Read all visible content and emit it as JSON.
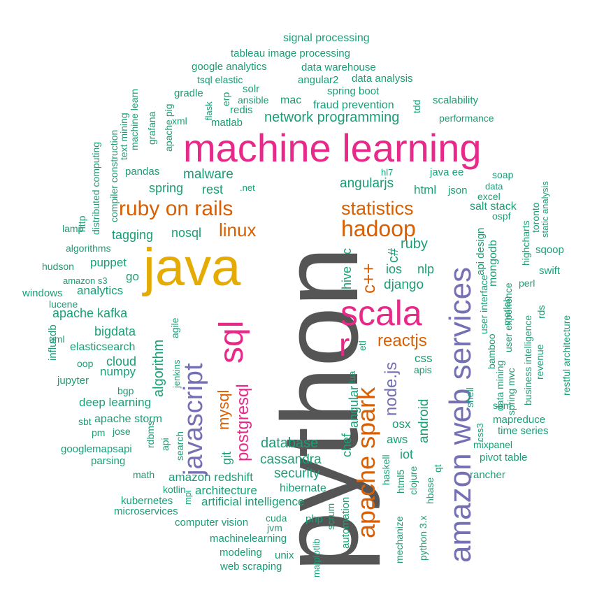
{
  "colors": {
    "teal": "#1b9e77",
    "orange": "#d95f02",
    "purple": "#7570b3",
    "pink": "#e7298a",
    "gold": "#e6ab02",
    "gray": "#555555"
  },
  "words": [
    {
      "text": "python",
      "color": "gray",
      "vertical": true
    },
    {
      "text": "java",
      "color": "gold",
      "vertical": false
    },
    {
      "text": "machine learning",
      "color": "pink",
      "vertical": false
    },
    {
      "text": "amazon web services",
      "color": "purple",
      "vertical": true
    },
    {
      "text": "scala",
      "color": "pink",
      "vertical": false
    },
    {
      "text": "javascript",
      "color": "purple",
      "vertical": true
    },
    {
      "text": "sql",
      "color": "pink",
      "vertical": true
    },
    {
      "text": "apache spark",
      "color": "orange",
      "vertical": true
    },
    {
      "text": "r",
      "color": "pink",
      "vertical": false
    },
    {
      "text": "ruby on rails",
      "color": "orange",
      "vertical": false
    },
    {
      "text": "hadoop",
      "color": "orange",
      "vertical": false
    },
    {
      "text": "statistics",
      "color": "orange",
      "vertical": false
    },
    {
      "text": "linux",
      "color": "orange",
      "vertical": false
    },
    {
      "text": "reactjs",
      "color": "orange",
      "vertical": false
    },
    {
      "text": "c++",
      "color": "orange",
      "vertical": true
    },
    {
      "text": "node.js",
      "color": "purple",
      "vertical": true
    },
    {
      "text": "postgresql",
      "color": "pink",
      "vertical": true
    },
    {
      "text": "mysql",
      "color": "orange",
      "vertical": true
    },
    {
      "text": "network programming",
      "color": "teal",
      "vertical": false
    },
    {
      "text": "malware",
      "color": "teal",
      "vertical": false
    },
    {
      "text": "spring",
      "color": "teal",
      "vertical": false
    },
    {
      "text": "rest",
      "color": "teal",
      "vertical": false
    },
    {
      "text": "tagging",
      "color": "teal",
      "vertical": false
    },
    {
      "text": "nosql",
      "color": "teal",
      "vertical": false
    },
    {
      "text": "angularjs",
      "color": "teal",
      "vertical": false
    },
    {
      "text": "html",
      "color": "teal",
      "vertical": false
    },
    {
      "text": "ruby",
      "color": "teal",
      "vertical": false
    },
    {
      "text": "ios",
      "color": "teal",
      "vertical": false
    },
    {
      "text": "nlp",
      "color": "teal",
      "vertical": false
    },
    {
      "text": "django",
      "color": "teal",
      "vertical": false
    },
    {
      "text": "hive",
      "color": "teal",
      "vertical": true
    },
    {
      "text": "c",
      "color": "teal",
      "vertical": true
    },
    {
      "text": "c#",
      "color": "teal",
      "vertical": true
    },
    {
      "text": "puppet",
      "color": "teal",
      "vertical": false
    },
    {
      "text": "go",
      "color": "teal",
      "vertical": false
    },
    {
      "text": "analytics",
      "color": "teal",
      "vertical": false
    },
    {
      "text": "apache kafka",
      "color": "teal",
      "vertical": false
    },
    {
      "text": "bigdata",
      "color": "teal",
      "vertical": false
    },
    {
      "text": "algorithm",
      "color": "teal",
      "vertical": true
    },
    {
      "text": "elasticsearch",
      "color": "teal",
      "vertical": false
    },
    {
      "text": "cloud",
      "color": "teal",
      "vertical": false
    },
    {
      "text": "numpy",
      "color": "teal",
      "vertical": false
    },
    {
      "text": "deep learning",
      "color": "teal",
      "vertical": false
    },
    {
      "text": "apache storm",
      "color": "teal",
      "vertical": false
    },
    {
      "text": "database",
      "color": "teal",
      "vertical": false
    },
    {
      "text": "cassandra",
      "color": "teal",
      "vertical": false
    },
    {
      "text": "security",
      "color": "teal",
      "vertical": false
    },
    {
      "text": "hibernate",
      "color": "teal",
      "vertical": false
    },
    {
      "text": "amazon redshift",
      "color": "teal",
      "vertical": false
    },
    {
      "text": "architecture",
      "color": "teal",
      "vertical": false
    },
    {
      "text": "artificial intelligence",
      "color": "teal",
      "vertical": false
    },
    {
      "text": "git",
      "color": "teal",
      "vertical": true
    },
    {
      "text": "chef",
      "color": "teal",
      "vertical": true
    },
    {
      "text": "angular",
      "color": "teal",
      "vertical": true
    },
    {
      "text": "lua",
      "color": "teal",
      "vertical": true
    },
    {
      "text": "etl",
      "color": "teal",
      "vertical": true
    },
    {
      "text": "osx",
      "color": "teal",
      "vertical": false
    },
    {
      "text": "aws",
      "color": "teal",
      "vertical": false
    },
    {
      "text": "iot",
      "color": "teal",
      "vertical": false
    },
    {
      "text": "android",
      "color": "teal",
      "vertical": true
    },
    {
      "text": "css",
      "color": "teal",
      "vertical": false
    },
    {
      "text": "apis",
      "color": "teal",
      "vertical": false
    },
    {
      "text": "pandas",
      "color": "teal",
      "vertical": false
    },
    {
      "text": ".net",
      "color": "teal",
      "vertical": false
    },
    {
      "text": "hl7",
      "color": "teal",
      "vertical": false
    },
    {
      "text": "java ee",
      "color": "teal",
      "vertical": false
    },
    {
      "text": "soap",
      "color": "teal",
      "vertical": false
    },
    {
      "text": "json",
      "color": "teal",
      "vertical": false
    },
    {
      "text": "data",
      "color": "teal",
      "vertical": false
    },
    {
      "text": "excel",
      "color": "teal",
      "vertical": false
    },
    {
      "text": "salt stack",
      "color": "teal",
      "vertical": false
    },
    {
      "text": "ospf",
      "color": "teal",
      "vertical": false
    },
    {
      "text": "mongodb",
      "color": "teal",
      "vertical": true
    },
    {
      "text": "api design",
      "color": "teal",
      "vertical": true
    },
    {
      "text": "user interface",
      "color": "teal",
      "vertical": true
    },
    {
      "text": "shell",
      "color": "teal",
      "vertical": true
    },
    {
      "text": "bamboo",
      "color": "teal",
      "vertical": true
    },
    {
      "text": "metlab",
      "color": "teal",
      "vertical": true
    },
    {
      "text": "data mining",
      "color": "teal",
      "vertical": true
    },
    {
      "text": "spring mvc",
      "color": "teal",
      "vertical": true
    },
    {
      "text": "user experience",
      "color": "teal",
      "vertical": true
    },
    {
      "text": "perl",
      "color": "teal",
      "vertical": false
    },
    {
      "text": "swift",
      "color": "teal",
      "vertical": false
    },
    {
      "text": "sqoop",
      "color": "teal",
      "vertical": false
    },
    {
      "text": "highcharts",
      "color": "teal",
      "vertical": true
    },
    {
      "text": "toronto",
      "color": "teal",
      "vertical": true
    },
    {
      "text": "static analysis",
      "color": "teal",
      "vertical": true
    },
    {
      "text": "rds",
      "color": "teal",
      "vertical": true
    },
    {
      "text": "revenue",
      "color": "teal",
      "vertical": true
    },
    {
      "text": "business intelligence",
      "color": "teal",
      "vertical": true
    },
    {
      "text": "restful architecture",
      "color": "teal",
      "vertical": true
    },
    {
      "text": "sem",
      "color": "teal",
      "vertical": false
    },
    {
      "text": "mapreduce",
      "color": "teal",
      "vertical": false
    },
    {
      "text": "time series",
      "color": "teal",
      "vertical": false
    },
    {
      "text": "mixpanel",
      "color": "teal",
      "vertical": false
    },
    {
      "text": "pivot table",
      "color": "teal",
      "vertical": false
    },
    {
      "text": "rancher",
      "color": "teal",
      "vertical": false
    },
    {
      "text": "css3",
      "color": "teal",
      "vertical": true
    },
    {
      "text": "signal processing",
      "color": "teal",
      "vertical": false
    },
    {
      "text": "tableau image processing",
      "color": "teal",
      "vertical": false
    },
    {
      "text": "google analytics",
      "color": "teal",
      "vertical": false
    },
    {
      "text": "data warehouse",
      "color": "teal",
      "vertical": false
    },
    {
      "text": "tsql elastic",
      "color": "teal",
      "vertical": false
    },
    {
      "text": "angular2",
      "color": "teal",
      "vertical": false
    },
    {
      "text": "data analysis",
      "color": "teal",
      "vertical": false
    },
    {
      "text": "gradle",
      "color": "teal",
      "vertical": false
    },
    {
      "text": "solr",
      "color": "teal",
      "vertical": false
    },
    {
      "text": "spring boot",
      "color": "teal",
      "vertical": false
    },
    {
      "text": "ansible",
      "color": "teal",
      "vertical": false
    },
    {
      "text": "mac",
      "color": "teal",
      "vertical": false
    },
    {
      "text": "fraud prevention",
      "color": "teal",
      "vertical": false
    },
    {
      "text": "scalability",
      "color": "teal",
      "vertical": false
    },
    {
      "text": "redis",
      "color": "teal",
      "vertical": false
    },
    {
      "text": "matlab",
      "color": "teal",
      "vertical": false
    },
    {
      "text": "xml",
      "color": "teal",
      "vertical": false
    },
    {
      "text": "performance",
      "color": "teal",
      "vertical": false
    },
    {
      "text": "tdd",
      "color": "teal",
      "vertical": true
    },
    {
      "text": "erp",
      "color": "teal",
      "vertical": true
    },
    {
      "text": "flask",
      "color": "teal",
      "vertical": true
    },
    {
      "text": "apache pig",
      "color": "teal",
      "vertical": true
    },
    {
      "text": "grafana",
      "color": "teal",
      "vertical": true
    },
    {
      "text": "machine learn",
      "color": "teal",
      "vertical": true
    },
    {
      "text": "text mining",
      "color": "teal",
      "vertical": true
    },
    {
      "text": "compiler construction",
      "color": "teal",
      "vertical": true
    },
    {
      "text": "distributed computing",
      "color": "teal",
      "vertical": true
    },
    {
      "text": "http",
      "color": "teal",
      "vertical": true
    },
    {
      "text": "lamp",
      "color": "teal",
      "vertical": false
    },
    {
      "text": "algorithms",
      "color": "teal",
      "vertical": false
    },
    {
      "text": "hudson",
      "color": "teal",
      "vertical": false
    },
    {
      "text": "amazon s3",
      "color": "teal",
      "vertical": false
    },
    {
      "text": "windows",
      "color": "teal",
      "vertical": false
    },
    {
      "text": "lucene",
      "color": "teal",
      "vertical": false
    },
    {
      "text": "uml",
      "color": "teal",
      "vertical": false
    },
    {
      "text": "influxdb",
      "color": "teal",
      "vertical": true
    },
    {
      "text": "oop",
      "color": "teal",
      "vertical": false
    },
    {
      "text": "jupyter",
      "color": "teal",
      "vertical": false
    },
    {
      "text": "agile",
      "color": "teal",
      "vertical": true
    },
    {
      "text": "jenkins",
      "color": "teal",
      "vertical": true
    },
    {
      "text": "bgp",
      "color": "teal",
      "vertical": false
    },
    {
      "text": "sbt",
      "color": "teal",
      "vertical": false
    },
    {
      "text": "pm",
      "color": "teal",
      "vertical": false
    },
    {
      "text": "jose",
      "color": "teal",
      "vertical": false
    },
    {
      "text": "googlemapsapi",
      "color": "teal",
      "vertical": false
    },
    {
      "text": "parsing",
      "color": "teal",
      "vertical": false
    },
    {
      "text": "math",
      "color": "teal",
      "vertical": false
    },
    {
      "text": "rdbms",
      "color": "teal",
      "vertical": true
    },
    {
      "text": "api",
      "color": "teal",
      "vertical": true
    },
    {
      "text": "search",
      "color": "teal",
      "vertical": true
    },
    {
      "text": "kotlin",
      "color": "teal",
      "vertical": false
    },
    {
      "text": "kubernetes",
      "color": "teal",
      "vertical": false
    },
    {
      "text": "mpi",
      "color": "teal",
      "vertical": true
    },
    {
      "text": "microservices",
      "color": "teal",
      "vertical": false
    },
    {
      "text": "computer vision",
      "color": "teal",
      "vertical": false
    },
    {
      "text": "cuda",
      "color": "teal",
      "vertical": false
    },
    {
      "text": "jvm",
      "color": "teal",
      "vertical": false
    },
    {
      "text": "php",
      "color": "teal",
      "vertical": false
    },
    {
      "text": "machinelearning",
      "color": "teal",
      "vertical": false
    },
    {
      "text": "modeling",
      "color": "teal",
      "vertical": false
    },
    {
      "text": "unix",
      "color": "teal",
      "vertical": false
    },
    {
      "text": "web scraping",
      "color": "teal",
      "vertical": false
    },
    {
      "text": "matplotlib",
      "color": "teal",
      "vertical": true
    },
    {
      "text": "scrum",
      "color": "teal",
      "vertical": true
    },
    {
      "text": "automation",
      "color": "teal",
      "vertical": true
    },
    {
      "text": "haskell",
      "color": "teal",
      "vertical": true
    },
    {
      "text": "html5",
      "color": "teal",
      "vertical": true
    },
    {
      "text": "mechanize",
      "color": "teal",
      "vertical": true
    },
    {
      "text": "clojure",
      "color": "teal",
      "vertical": true
    },
    {
      "text": "python 3.x",
      "color": "teal",
      "vertical": true
    },
    {
      "text": "hbase",
      "color": "teal",
      "vertical": true
    },
    {
      "text": "qt",
      "color": "teal",
      "vertical": true
    }
  ]
}
